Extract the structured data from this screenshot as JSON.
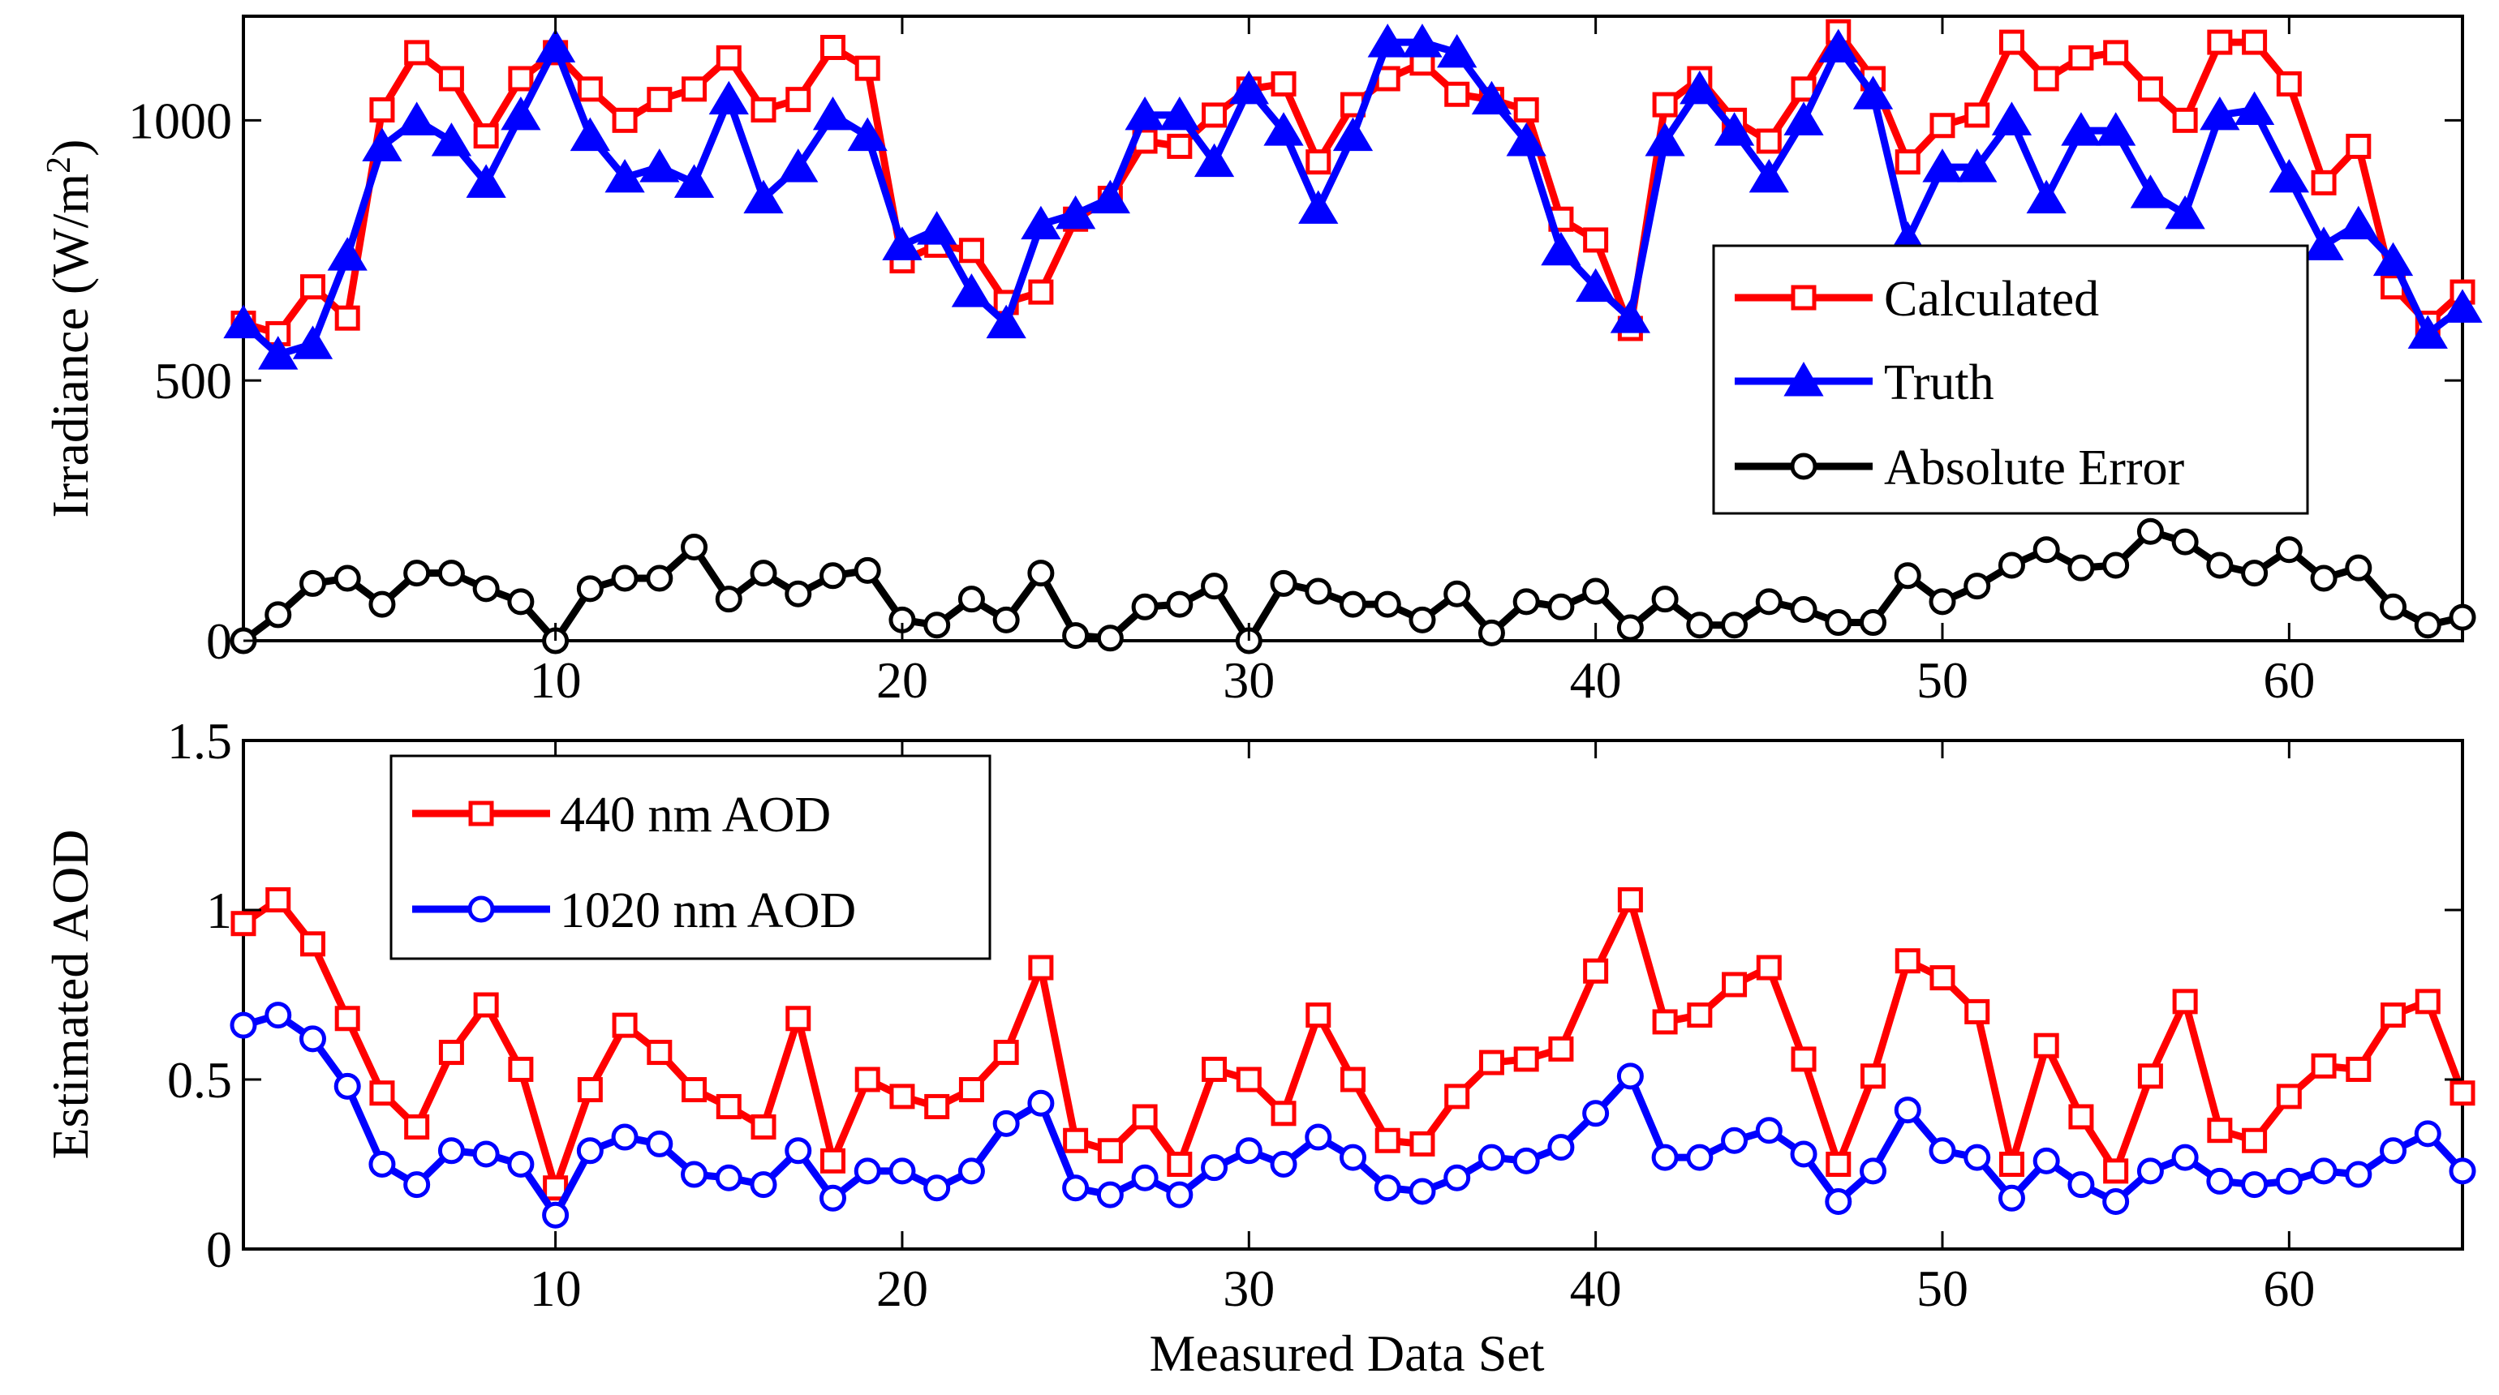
{
  "chart_data": [
    {
      "type": "line",
      "title": "",
      "xlabel": "",
      "ylabel": "Irradiance (W/m",
      "ylabel_sup": "2",
      "ylabel_close": ")",
      "xlim": [
        1,
        65
      ],
      "ylim": [
        0,
        1200
      ],
      "xticks": [
        "10",
        "20",
        "30",
        "40",
        "50",
        "60"
      ],
      "yticks": [
        "0",
        "500",
        "1000"
      ],
      "legend_position": "right",
      "x": [
        1,
        2,
        3,
        4,
        5,
        6,
        7,
        8,
        9,
        10,
        11,
        12,
        13,
        14,
        15,
        16,
        17,
        18,
        19,
        20,
        21,
        22,
        23,
        24,
        25,
        26,
        27,
        28,
        29,
        30,
        31,
        32,
        33,
        34,
        35,
        36,
        37,
        38,
        39,
        40,
        41,
        42,
        43,
        44,
        45,
        46,
        47,
        48,
        49,
        50,
        51,
        52,
        53,
        54,
        55,
        56,
        57,
        58,
        59,
        60,
        61,
        62,
        63,
        64,
        65
      ],
      "series": [
        {
          "name": "Calculated",
          "color": "#ff0000",
          "marker": "square",
          "values": [
            610,
            590,
            680,
            620,
            1020,
            1130,
            1080,
            970,
            1080,
            1130,
            1060,
            1000,
            1040,
            1060,
            1120,
            1020,
            1040,
            1140,
            1100,
            730,
            760,
            750,
            650,
            670,
            810,
            850,
            960,
            950,
            1010,
            1060,
            1070,
            920,
            1030,
            1080,
            1110,
            1050,
            1040,
            1020,
            810,
            770,
            600,
            1030,
            1080,
            1000,
            960,
            1060,
            1170,
            1080,
            920,
            990,
            1010,
            1150,
            1080,
            1120,
            1130,
            1060,
            1000,
            1150,
            1150,
            1070,
            880,
            950,
            680,
            610,
            670
          ]
        },
        {
          "name": "Truth",
          "color": "#0000ff",
          "marker": "triangle",
          "values": [
            610,
            550,
            570,
            740,
            950,
            1000,
            960,
            880,
            1010,
            1140,
            970,
            890,
            910,
            880,
            1040,
            850,
            910,
            1010,
            970,
            760,
            790,
            670,
            610,
            800,
            820,
            850,
            1010,
            1010,
            920,
            1060,
            980,
            830,
            970,
            1150,
            1150,
            1130,
            1040,
            960,
            750,
            680,
            620,
            960,
            1060,
            980,
            890,
            1000,
            1140,
            1050,
            770,
            910,
            910,
            1000,
            850,
            980,
            980,
            860,
            820,
            1010,
            1020,
            890,
            760,
            800,
            730,
            590,
            640
          ]
        },
        {
          "name": "Absolute Error",
          "color": "#000000",
          "marker": "circle",
          "values": [
            0,
            50,
            110,
            120,
            70,
            130,
            130,
            100,
            75,
            0,
            100,
            120,
            120,
            180,
            80,
            130,
            90,
            125,
            135,
            40,
            30,
            80,
            40,
            130,
            10,
            5,
            65,
            70,
            105,
            0,
            110,
            95,
            70,
            70,
            40,
            90,
            15,
            75,
            65,
            95,
            25,
            80,
            30,
            30,
            75,
            60,
            35,
            35,
            125,
            75,
            105,
            145,
            175,
            140,
            145,
            210,
            190,
            145,
            130,
            175,
            120,
            140,
            65,
            30,
            45
          ]
        }
      ]
    },
    {
      "type": "line",
      "title": "",
      "xlabel": "Measured Data Set",
      "ylabel": "Estimated AOD",
      "xlim": [
        1,
        65
      ],
      "ylim": [
        0,
        1.5
      ],
      "xticks": [
        "10",
        "20",
        "30",
        "40",
        "50",
        "60"
      ],
      "yticks": [
        "0",
        "0.5",
        "1",
        "1.5"
      ],
      "legend_position": "top-left",
      "x": [
        1,
        2,
        3,
        4,
        5,
        6,
        7,
        8,
        9,
        10,
        11,
        12,
        13,
        14,
        15,
        16,
        17,
        18,
        19,
        20,
        21,
        22,
        23,
        24,
        25,
        26,
        27,
        28,
        29,
        30,
        31,
        32,
        33,
        34,
        35,
        36,
        37,
        38,
        39,
        40,
        41,
        42,
        43,
        44,
        45,
        46,
        47,
        48,
        49,
        50,
        51,
        52,
        53,
        54,
        55,
        56,
        57,
        58,
        59,
        60,
        61,
        62,
        63,
        64,
        65
      ],
      "series": [
        {
          "name": "440 nm AOD",
          "color": "#ff0000",
          "marker": "square",
          "values": [
            0.96,
            1.03,
            0.9,
            0.68,
            0.46,
            0.36,
            0.58,
            0.72,
            0.53,
            0.18,
            0.47,
            0.66,
            0.58,
            0.47,
            0.42,
            0.36,
            0.68,
            0.26,
            0.5,
            0.45,
            0.42,
            0.47,
            0.58,
            0.83,
            0.32,
            0.29,
            0.39,
            0.25,
            0.53,
            0.5,
            0.4,
            0.69,
            0.5,
            0.32,
            0.31,
            0.45,
            0.55,
            0.56,
            0.59,
            0.82,
            1.03,
            0.67,
            0.69,
            0.78,
            0.83,
            0.56,
            0.25,
            0.51,
            0.85,
            0.8,
            0.7,
            0.25,
            0.6,
            0.39,
            0.23,
            0.51,
            0.73,
            0.35,
            0.32,
            0.45,
            0.54,
            0.53,
            0.69,
            0.73,
            0.46
          ]
        },
        {
          "name": "1020 nm AOD",
          "color": "#0000ff",
          "marker": "circle",
          "values": [
            0.66,
            0.69,
            0.62,
            0.48,
            0.25,
            0.19,
            0.29,
            0.28,
            0.25,
            0.1,
            0.29,
            0.33,
            0.31,
            0.22,
            0.21,
            0.19,
            0.29,
            0.15,
            0.23,
            0.23,
            0.18,
            0.23,
            0.37,
            0.43,
            0.18,
            0.16,
            0.21,
            0.16,
            0.24,
            0.29,
            0.25,
            0.33,
            0.27,
            0.18,
            0.17,
            0.21,
            0.27,
            0.26,
            0.3,
            0.4,
            0.51,
            0.27,
            0.27,
            0.32,
            0.35,
            0.28,
            0.14,
            0.23,
            0.41,
            0.29,
            0.27,
            0.15,
            0.26,
            0.19,
            0.14,
            0.23,
            0.27,
            0.2,
            0.19,
            0.2,
            0.23,
            0.22,
            0.29,
            0.34,
            0.23
          ]
        }
      ]
    }
  ]
}
